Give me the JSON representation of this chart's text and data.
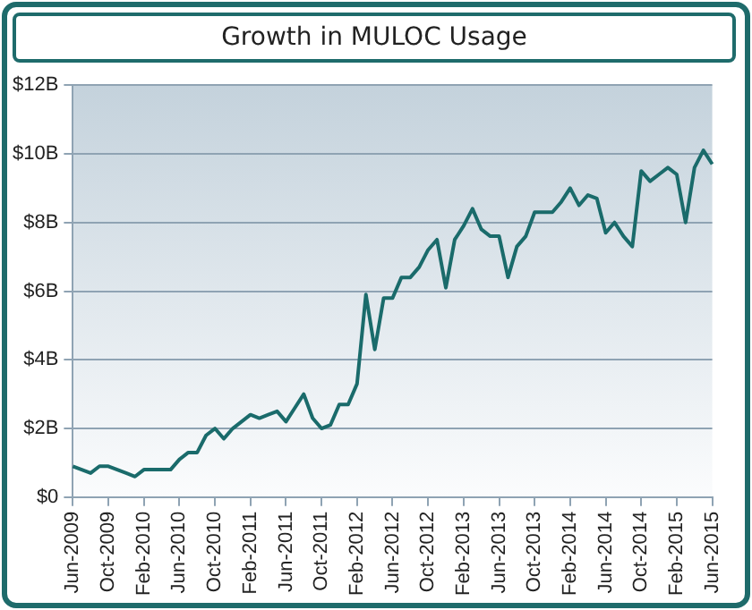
{
  "chart_data": {
    "type": "line",
    "title": "Growth in MULOC Usage",
    "categories": [
      "Jun-2009",
      null,
      null,
      null,
      "Oct-2009",
      null,
      null,
      null,
      "Feb-2010",
      null,
      null,
      null,
      "Jun-2010",
      null,
      null,
      null,
      "Oct-2010",
      null,
      null,
      null,
      "Feb-2011",
      null,
      null,
      null,
      "Jun-2011",
      null,
      null,
      null,
      "Oct-2011",
      null,
      null,
      null,
      "Feb-2012",
      null,
      null,
      null,
      "Jun-2012",
      null,
      null,
      null,
      "Oct-2012",
      null,
      null,
      null,
      "Feb-2013",
      null,
      null,
      null,
      "Jun-2013",
      null,
      null,
      null,
      "Oct-2013",
      null,
      null,
      null,
      "Feb-2014",
      null,
      null,
      null,
      "Jun-2014",
      null,
      null,
      null,
      "Oct-2014",
      null,
      null,
      null,
      "Feb-2015",
      null,
      null,
      null,
      "Jun-2015"
    ],
    "series": [
      {
        "color": "#1a6b6b",
        "values": [
          0.9,
          0.8,
          0.7,
          0.9,
          0.9,
          0.8,
          0.7,
          0.6,
          0.8,
          0.8,
          0.8,
          0.8,
          1.1,
          1.3,
          1.3,
          1.8,
          2.0,
          1.7,
          2.0,
          2.2,
          2.4,
          2.3,
          2.4,
          2.5,
          2.2,
          2.6,
          3.0,
          2.3,
          2.0,
          2.1,
          2.7,
          2.7,
          3.3,
          5.9,
          4.3,
          5.8,
          5.8,
          6.4,
          6.4,
          6.7,
          7.2,
          7.5,
          6.1,
          7.5,
          7.9,
          8.4,
          7.8,
          7.6,
          7.6,
          6.4,
          7.3,
          7.6,
          8.3,
          8.3,
          8.3,
          8.6,
          9.0,
          8.5,
          8.8,
          8.7,
          7.7,
          8.0,
          7.6,
          7.3,
          9.5,
          9.2,
          9.4,
          9.6,
          9.4,
          8.0,
          9.6,
          10.1,
          9.7
        ]
      }
    ],
    "ylim": [
      0,
      12
    ],
    "yticks": [
      {
        "value": 0,
        "label": "$0"
      },
      {
        "value": 2,
        "label": "$2B"
      },
      {
        "value": 4,
        "label": "$4B"
      },
      {
        "value": 6,
        "label": "$6B"
      },
      {
        "value": 8,
        "label": "$8B"
      },
      {
        "value": 10,
        "label": "$10B"
      },
      {
        "value": 12,
        "label": "$12B"
      }
    ],
    "grid": "y",
    "legend": false,
    "marker": "none",
    "line_style": "solid"
  }
}
